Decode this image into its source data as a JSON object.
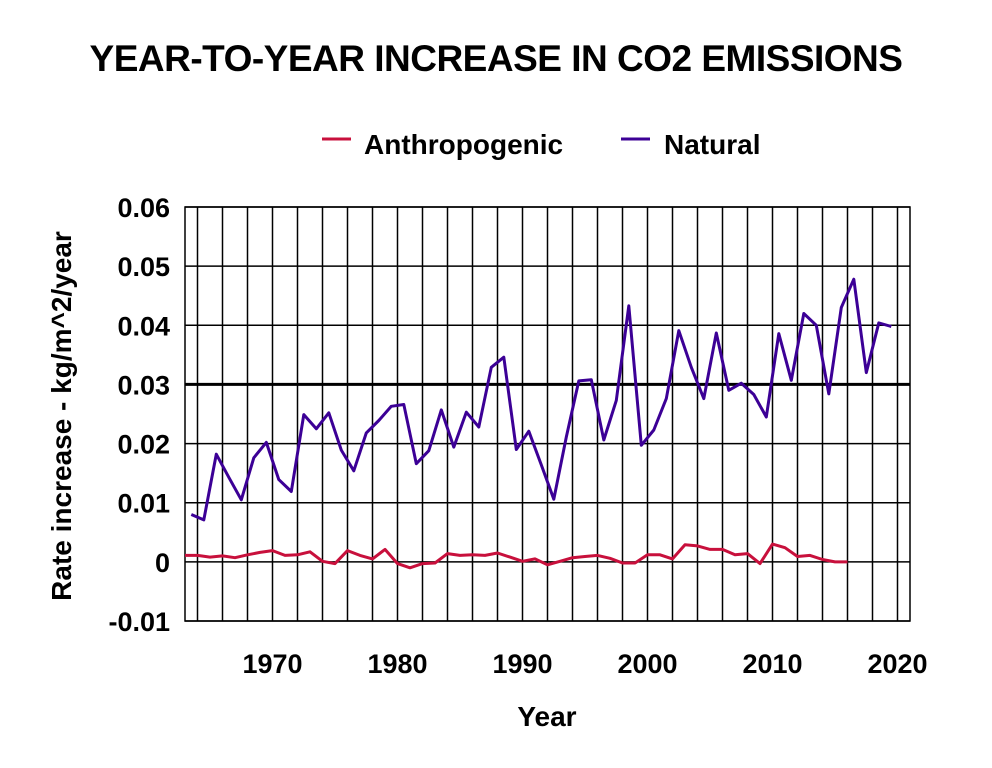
{
  "chart_data": {
    "type": "line",
    "title": "YEAR-TO-YEAR INCREASE IN CO2 EMISSIONS",
    "xlabel": "Year",
    "ylabel": "Rate increase - kg/m^2/year",
    "xlim": [
      1963,
      2021
    ],
    "ylim": [
      -0.01,
      0.06
    ],
    "xticks": [
      1970,
      1980,
      1990,
      2000,
      2010,
      2020
    ],
    "xtick_labels": [
      "1970",
      "1980",
      "1990",
      "2000",
      "2010",
      "2020"
    ],
    "x_gridlines_every_years": 2,
    "yticks": [
      -0.01,
      0,
      0.01,
      0.02,
      0.03,
      0.04,
      0.05,
      0.06
    ],
    "ytick_labels": [
      "-0.01",
      "0",
      "0.01",
      "0.02",
      "0.03",
      "0.04",
      "0.05",
      "0.06"
    ],
    "emphasized_gridline_y": 0.03,
    "grid": true,
    "legend_position": "top-center",
    "series": [
      {
        "name": "Anthropogenic",
        "color": "#c8103c",
        "x": [
          1963,
          1964,
          1965,
          1966,
          1967,
          1968,
          1969,
          1970,
          1971,
          1972,
          1973,
          1974,
          1975,
          1976,
          1977,
          1978,
          1979,
          1980,
          1981,
          1982,
          1983,
          1984,
          1985,
          1986,
          1987,
          1988,
          1989,
          1990,
          1991,
          1992,
          1993,
          1994,
          1995,
          1996,
          1997,
          1998,
          1999,
          2000,
          2001,
          2002,
          2003,
          2004,
          2005,
          2006,
          2007,
          2008,
          2009,
          2010,
          2011,
          2012,
          2013,
          2014,
          2015,
          2016
        ],
        "values": [
          0.0011,
          0.0011,
          0.0008,
          0.001,
          0.0007,
          0.0012,
          0.0016,
          0.0019,
          0.0011,
          0.0012,
          0.0017,
          0.0001,
          -0.0003,
          0.0019,
          0.0011,
          0.0005,
          0.0021,
          -0.0003,
          -0.001,
          -0.0003,
          -0.0002,
          0.0014,
          0.0011,
          0.0012,
          0.0011,
          0.0015,
          0.0008,
          0.0001,
          0.0005,
          -0.0005,
          0.0001,
          0.0007,
          0.0009,
          0.0011,
          0.0006,
          -0.0002,
          -0.0002,
          0.0012,
          0.0012,
          0.0005,
          0.0029,
          0.0027,
          0.0021,
          0.0021,
          0.0012,
          0.0014,
          -0.0003,
          0.003,
          0.0024,
          0.0009,
          0.0011,
          0.0004,
          0.0,
          0.0
        ]
      },
      {
        "name": "Natural",
        "color": "#3c0096",
        "x": [
          1963.5,
          1964.5,
          1965.5,
          1966.5,
          1967.5,
          1968.5,
          1969.5,
          1970.5,
          1971.5,
          1972.5,
          1973.5,
          1974.5,
          1975.5,
          1976.5,
          1977.5,
          1978.5,
          1979.5,
          1980.5,
          1981.5,
          1982.5,
          1983.5,
          1984.5,
          1985.5,
          1986.5,
          1987.5,
          1988.5,
          1989.5,
          1990.5,
          1991.5,
          1992.5,
          1993.5,
          1994.5,
          1995.5,
          1996.5,
          1997.5,
          1998.5,
          1999.5,
          2000.5,
          2001.5,
          2002.5,
          2003.5,
          2004.5,
          2005.5,
          2006.5,
          2007.5,
          2008.5,
          2009.5,
          2010.5,
          2011.5,
          2012.5,
          2013.5,
          2014.5,
          2015.5,
          2016.5,
          2017.5,
          2018.5,
          2019.5
        ],
        "values": [
          0.008,
          0.0071,
          0.0182,
          0.0143,
          0.0105,
          0.0176,
          0.0202,
          0.0139,
          0.0119,
          0.0249,
          0.0225,
          0.0252,
          0.0189,
          0.0154,
          0.0218,
          0.0239,
          0.0263,
          0.0266,
          0.0166,
          0.0188,
          0.0257,
          0.0194,
          0.0253,
          0.0228,
          0.0329,
          0.0346,
          0.019,
          0.0221,
          0.0164,
          0.0106,
          0.0211,
          0.0306,
          0.0308,
          0.0206,
          0.0273,
          0.0433,
          0.0197,
          0.0223,
          0.0276,
          0.0391,
          0.0329,
          0.0276,
          0.0387,
          0.029,
          0.0302,
          0.0283,
          0.0245,
          0.0386,
          0.0307,
          0.042,
          0.04,
          0.0284,
          0.043,
          0.0478,
          0.032,
          0.0404,
          0.0398
        ]
      }
    ]
  }
}
